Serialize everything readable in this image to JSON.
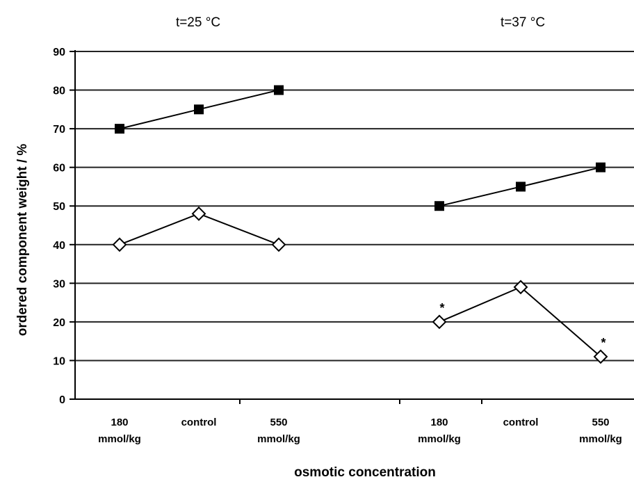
{
  "chart_data": {
    "type": "line",
    "ylabel": "ordered component weight / %",
    "xlabel": "osmotic concentration",
    "ylim": [
      0,
      90
    ],
    "y_ticks": [
      "0",
      "10",
      "20",
      "30",
      "40",
      "50",
      "60",
      "70",
      "80",
      "90"
    ],
    "grid": true,
    "panels": [
      {
        "title": "t=25 °C",
        "categories": [
          [
            "180",
            "mmol/kg"
          ],
          [
            "control"
          ],
          [
            "550",
            "mmol/kg"
          ]
        ],
        "series": [
          {
            "marker": "filled-square",
            "values": [
              70,
              75,
              80
            ]
          },
          {
            "marker": "open-diamond",
            "values": [
              40,
              48,
              40
            ]
          }
        ],
        "annotations": []
      },
      {
        "title": "t=37 °C",
        "categories": [
          [
            "180",
            "mmol/kg"
          ],
          [
            "control"
          ],
          [
            "550",
            "mmol/kg"
          ]
        ],
        "series": [
          {
            "marker": "filled-square",
            "values": [
              50,
              55,
              60
            ]
          },
          {
            "marker": "open-diamond",
            "values": [
              20,
              29,
              11
            ]
          }
        ],
        "annotations": [
          {
            "text": "*",
            "category": 0,
            "value": 20
          },
          {
            "text": "*",
            "category": 2,
            "value": 11
          }
        ]
      }
    ]
  }
}
